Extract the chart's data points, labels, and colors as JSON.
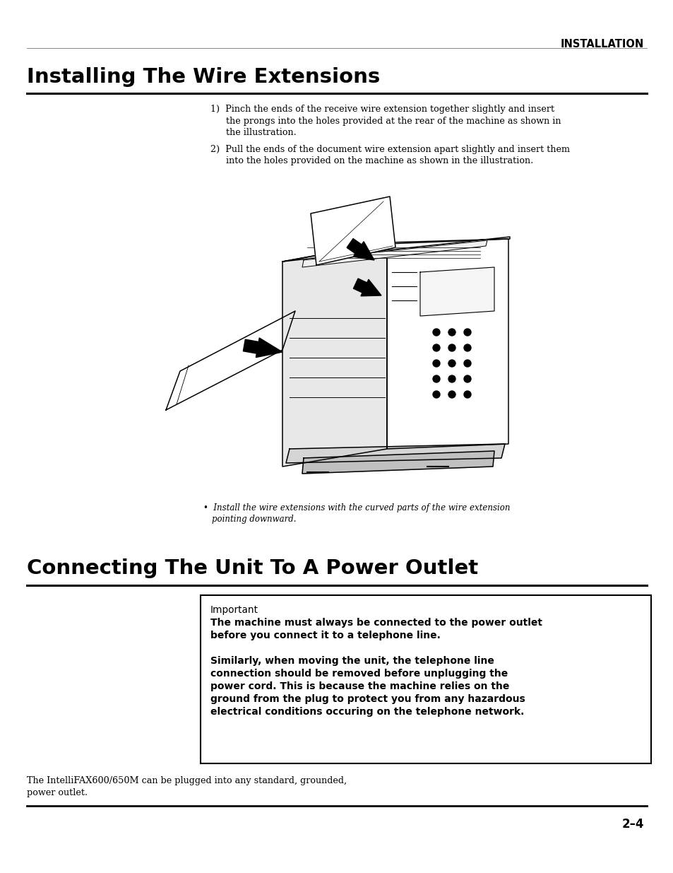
{
  "page_bg": "#ffffff",
  "header_text": "INSTALLATION",
  "title1": "Installing The Wire Extensions",
  "title2": "Connecting The Unit To A Power Outlet",
  "step1_line1": "1)  Pinch the ends of the receive wire extension together slightly and insert",
  "step1_line2": "the prongs into the holes provided at the rear of the machine as shown in",
  "step1_line3": "the illustration.",
  "step2_line1": "2)  Pull the ends of the document wire extension apart slightly and insert them",
  "step2_line2": "into the holes provided on the machine as shown in the illustration.",
  "note_line1": "•  Install the wire extensions with the curved parts of the wire extension",
  "note_line2": "   pointing downward.",
  "box_label": "Important",
  "box_line1": "The machine must always be connected to the power outlet",
  "box_line2": "before you connect it to a telephone line.",
  "box_line3": "Similarly, when moving the unit, the telephone line",
  "box_line4": "connection should be removed before unplugging the",
  "box_line5": "power cord. This is because the machine relies on the",
  "box_line6": "ground from the plug to protect you from any hazardous",
  "box_line7": "electrical conditions occuring on the telephone network.",
  "footer1": "The IntelliFAX600/650M can be plugged into any standard, grounded,",
  "footer2": "power outlet.",
  "page_num": "2–4"
}
